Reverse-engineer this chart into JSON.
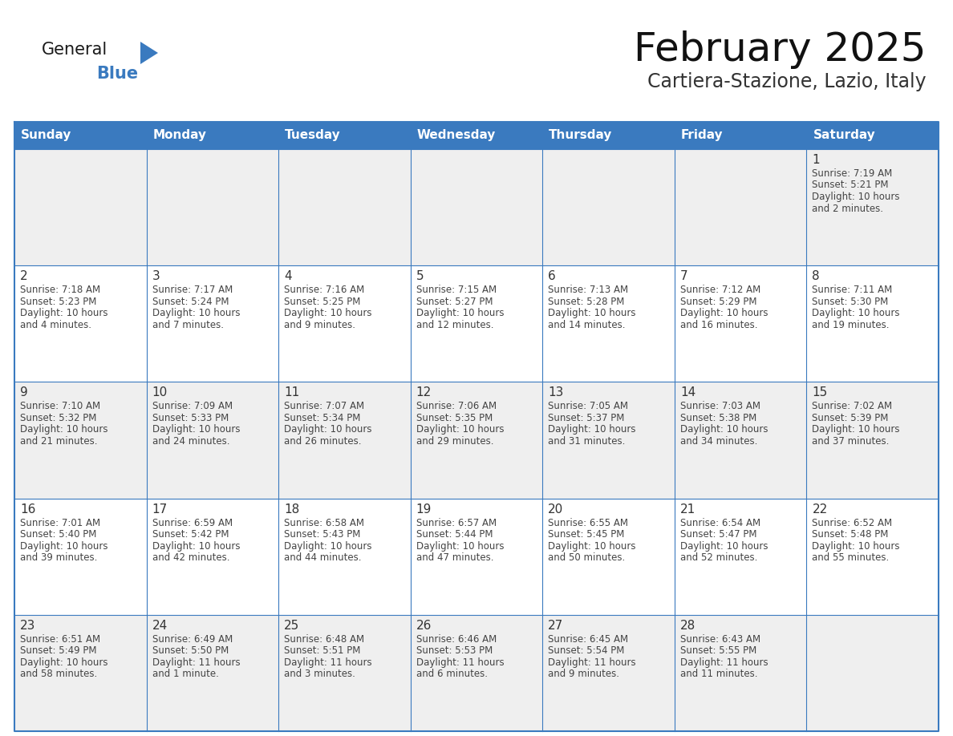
{
  "title": "February 2025",
  "subtitle": "Cartiera-Stazione, Lazio, Italy",
  "days_of_week": [
    "Sunday",
    "Monday",
    "Tuesday",
    "Wednesday",
    "Thursday",
    "Friday",
    "Saturday"
  ],
  "header_bg": "#3a7abf",
  "header_text": "#ffffff",
  "cell_bg_light": "#efefef",
  "cell_bg_white": "#ffffff",
  "border_color": "#3a7abf",
  "text_color": "#444444",
  "day_number_color": "#333333",
  "calendar_data": [
    [
      null,
      null,
      null,
      null,
      null,
      null,
      {
        "day": 1,
        "sunrise": "7:19 AM",
        "sunset": "5:21 PM",
        "daylight": "10 hours",
        "daylight2": "and 2 minutes."
      }
    ],
    [
      {
        "day": 2,
        "sunrise": "7:18 AM",
        "sunset": "5:23 PM",
        "daylight": "10 hours",
        "daylight2": "and 4 minutes."
      },
      {
        "day": 3,
        "sunrise": "7:17 AM",
        "sunset": "5:24 PM",
        "daylight": "10 hours",
        "daylight2": "and 7 minutes."
      },
      {
        "day": 4,
        "sunrise": "7:16 AM",
        "sunset": "5:25 PM",
        "daylight": "10 hours",
        "daylight2": "and 9 minutes."
      },
      {
        "day": 5,
        "sunrise": "7:15 AM",
        "sunset": "5:27 PM",
        "daylight": "10 hours",
        "daylight2": "and 12 minutes."
      },
      {
        "day": 6,
        "sunrise": "7:13 AM",
        "sunset": "5:28 PM",
        "daylight": "10 hours",
        "daylight2": "and 14 minutes."
      },
      {
        "day": 7,
        "sunrise": "7:12 AM",
        "sunset": "5:29 PM",
        "daylight": "10 hours",
        "daylight2": "and 16 minutes."
      },
      {
        "day": 8,
        "sunrise": "7:11 AM",
        "sunset": "5:30 PM",
        "daylight": "10 hours",
        "daylight2": "and 19 minutes."
      }
    ],
    [
      {
        "day": 9,
        "sunrise": "7:10 AM",
        "sunset": "5:32 PM",
        "daylight": "10 hours",
        "daylight2": "and 21 minutes."
      },
      {
        "day": 10,
        "sunrise": "7:09 AM",
        "sunset": "5:33 PM",
        "daylight": "10 hours",
        "daylight2": "and 24 minutes."
      },
      {
        "day": 11,
        "sunrise": "7:07 AM",
        "sunset": "5:34 PM",
        "daylight": "10 hours",
        "daylight2": "and 26 minutes."
      },
      {
        "day": 12,
        "sunrise": "7:06 AM",
        "sunset": "5:35 PM",
        "daylight": "10 hours",
        "daylight2": "and 29 minutes."
      },
      {
        "day": 13,
        "sunrise": "7:05 AM",
        "sunset": "5:37 PM",
        "daylight": "10 hours",
        "daylight2": "and 31 minutes."
      },
      {
        "day": 14,
        "sunrise": "7:03 AM",
        "sunset": "5:38 PM",
        "daylight": "10 hours",
        "daylight2": "and 34 minutes."
      },
      {
        "day": 15,
        "sunrise": "7:02 AM",
        "sunset": "5:39 PM",
        "daylight": "10 hours",
        "daylight2": "and 37 minutes."
      }
    ],
    [
      {
        "day": 16,
        "sunrise": "7:01 AM",
        "sunset": "5:40 PM",
        "daylight": "10 hours",
        "daylight2": "and 39 minutes."
      },
      {
        "day": 17,
        "sunrise": "6:59 AM",
        "sunset": "5:42 PM",
        "daylight": "10 hours",
        "daylight2": "and 42 minutes."
      },
      {
        "day": 18,
        "sunrise": "6:58 AM",
        "sunset": "5:43 PM",
        "daylight": "10 hours",
        "daylight2": "and 44 minutes."
      },
      {
        "day": 19,
        "sunrise": "6:57 AM",
        "sunset": "5:44 PM",
        "daylight": "10 hours",
        "daylight2": "and 47 minutes."
      },
      {
        "day": 20,
        "sunrise": "6:55 AM",
        "sunset": "5:45 PM",
        "daylight": "10 hours",
        "daylight2": "and 50 minutes."
      },
      {
        "day": 21,
        "sunrise": "6:54 AM",
        "sunset": "5:47 PM",
        "daylight": "10 hours",
        "daylight2": "and 52 minutes."
      },
      {
        "day": 22,
        "sunrise": "6:52 AM",
        "sunset": "5:48 PM",
        "daylight": "10 hours",
        "daylight2": "and 55 minutes."
      }
    ],
    [
      {
        "day": 23,
        "sunrise": "6:51 AM",
        "sunset": "5:49 PM",
        "daylight": "10 hours",
        "daylight2": "and 58 minutes."
      },
      {
        "day": 24,
        "sunrise": "6:49 AM",
        "sunset": "5:50 PM",
        "daylight": "11 hours",
        "daylight2": "and 1 minute."
      },
      {
        "day": 25,
        "sunrise": "6:48 AM",
        "sunset": "5:51 PM",
        "daylight": "11 hours",
        "daylight2": "and 3 minutes."
      },
      {
        "day": 26,
        "sunrise": "6:46 AM",
        "sunset": "5:53 PM",
        "daylight": "11 hours",
        "daylight2": "and 6 minutes."
      },
      {
        "day": 27,
        "sunrise": "6:45 AM",
        "sunset": "5:54 PM",
        "daylight": "11 hours",
        "daylight2": "and 9 minutes."
      },
      {
        "day": 28,
        "sunrise": "6:43 AM",
        "sunset": "5:55 PM",
        "daylight": "11 hours",
        "daylight2": "and 11 minutes."
      },
      null
    ]
  ],
  "logo_text_general": "General",
  "logo_text_blue": "Blue",
  "logo_triangle_color": "#3a7abf"
}
